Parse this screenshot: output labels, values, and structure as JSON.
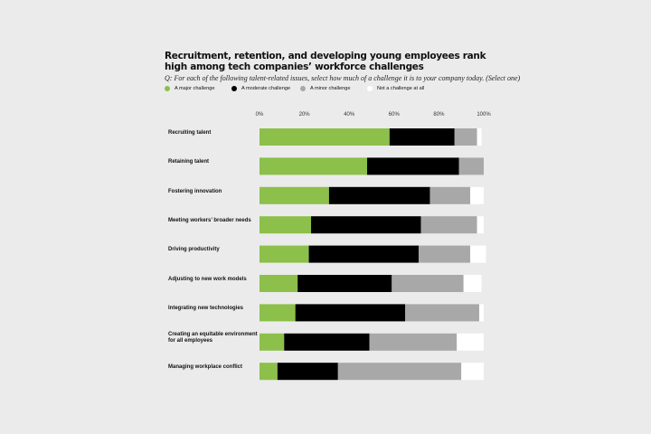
{
  "title": "Recruitment, retention, and developing young employees rank high among tech companies’ workforce challenges",
  "question": "Q: For each of the following talent-related issues, select how much of a challenge it is to your company today. (Select one)",
  "colors": {
    "major": "#8cc04a",
    "moderate": "#000000",
    "minor": "#a8a8a8",
    "none": "#ffffff"
  },
  "chart_data": {
    "type": "bar",
    "orientation": "horizontal",
    "stacked": true,
    "xlim": [
      0,
      100
    ],
    "x_ticks": [
      "0%",
      "20%",
      "40%",
      "60%",
      "80%",
      "100%"
    ],
    "categories": [
      [
        "Recruiting talent"
      ],
      [
        "Retaining talent"
      ],
      [
        "Fostering innovation"
      ],
      [
        "Meeting workers’ broader needs"
      ],
      [
        "Driving productivity"
      ],
      [
        "Adjusting to new work models"
      ],
      [
        "Integrating new technologies"
      ],
      [
        "Creating an equitable environment",
        "for all employees"
      ],
      [
        "Managing workplace conflict"
      ]
    ],
    "series": [
      {
        "name": "A major challenge",
        "values": [
          58,
          48,
          31,
          23,
          22,
          17,
          16,
          11,
          8
        ]
      },
      {
        "name": "A moderate challenge",
        "values": [
          29,
          41,
          45,
          49,
          49,
          42,
          49,
          38,
          27
        ]
      },
      {
        "name": "A minor challenge",
        "values": [
          10,
          11,
          18,
          25,
          23,
          32,
          33,
          39,
          55
        ]
      },
      {
        "name": "Not a challenge at all",
        "values": [
          2,
          0,
          6,
          3,
          7,
          8,
          2,
          12,
          10
        ]
      }
    ],
    "legend": "top"
  }
}
